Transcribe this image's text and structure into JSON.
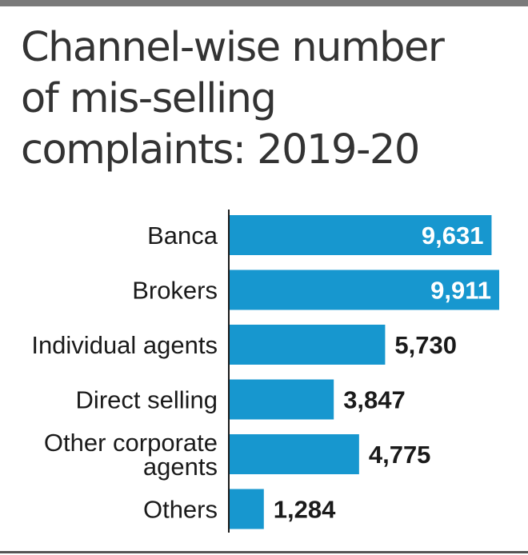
{
  "chart_data": {
    "type": "bar",
    "orientation": "horizontal",
    "title_lines": [
      "Channel-wise number",
      "of mis-selling",
      "complaints: 2019-20"
    ],
    "categories": [
      [
        "Banca"
      ],
      [
        "Brokers"
      ],
      [
        "Individual agents"
      ],
      [
        "Direct selling"
      ],
      [
        "Other corporate",
        "agents"
      ],
      [
        "Others"
      ]
    ],
    "values": [
      9631,
      9911,
      5730,
      3847,
      4775,
      1284
    ],
    "value_labels": [
      "9,631",
      "9,911",
      "5,730",
      "3,847",
      "4,775",
      "1,284"
    ],
    "xlim": [
      0,
      9911
    ],
    "grid": false,
    "legend": "none",
    "colors": {
      "bar": "#1797cf",
      "axis": "#1a1a1a",
      "rules": "#7a7a7a"
    }
  }
}
